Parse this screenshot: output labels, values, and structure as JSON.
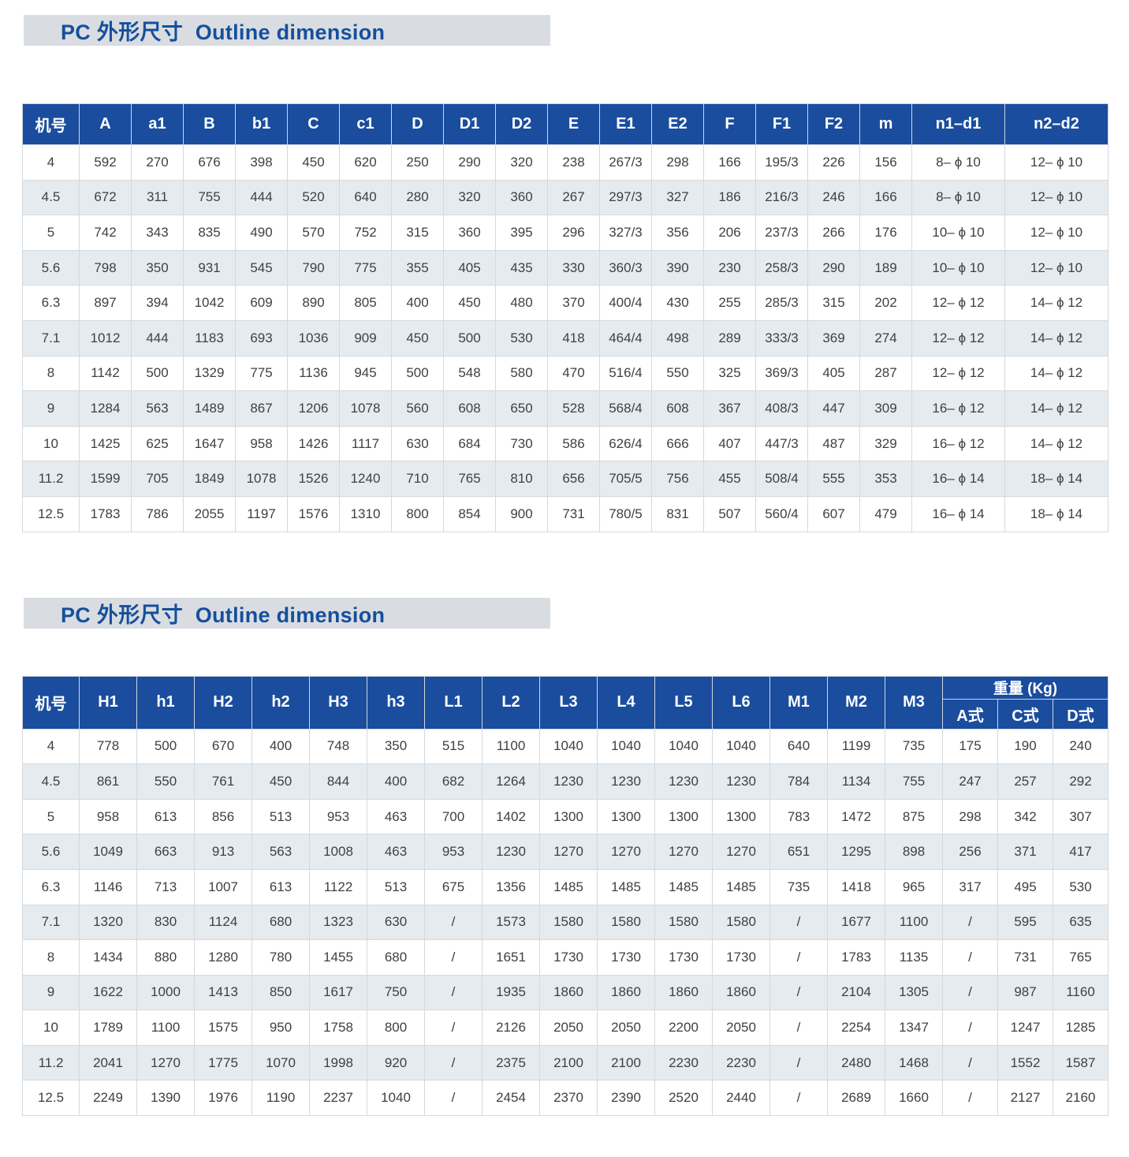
{
  "colors": {
    "header_blue": "#1a4d9e",
    "title_text_blue": "#154f9d",
    "title_bar_background": "#d9dde1",
    "row_alternate": "#e6ebef",
    "cell_text": "#3d4144",
    "grid_line": "#d4d9dd"
  },
  "section1": {
    "title": "PC 外形尺寸  Outline dimension",
    "table": {
      "columns": [
        "机号",
        "A",
        "a1",
        "B",
        "b1",
        "C",
        "c1",
        "D",
        "D1",
        "D2",
        "E",
        "E1",
        "E2",
        "F",
        "F1",
        "F2",
        "m",
        "n1–d1",
        "n2–d2"
      ],
      "rows": [
        [
          "4",
          "592",
          "270",
          "676",
          "398",
          "450",
          "620",
          "250",
          "290",
          "320",
          "238",
          "267/3",
          "298",
          "166",
          "195/3",
          "226",
          "156",
          "8– ϕ 10",
          "12– ϕ 10"
        ],
        [
          "4.5",
          "672",
          "311",
          "755",
          "444",
          "520",
          "640",
          "280",
          "320",
          "360",
          "267",
          "297/3",
          "327",
          "186",
          "216/3",
          "246",
          "166",
          "8– ϕ 10",
          "12– ϕ 10"
        ],
        [
          "5",
          "742",
          "343",
          "835",
          "490",
          "570",
          "752",
          "315",
          "360",
          "395",
          "296",
          "327/3",
          "356",
          "206",
          "237/3",
          "266",
          "176",
          "10– ϕ 10",
          "12– ϕ 10"
        ],
        [
          "5.6",
          "798",
          "350",
          "931",
          "545",
          "790",
          "775",
          "355",
          "405",
          "435",
          "330",
          "360/3",
          "390",
          "230",
          "258/3",
          "290",
          "189",
          "10– ϕ 10",
          "12– ϕ 10"
        ],
        [
          "6.3",
          "897",
          "394",
          "1042",
          "609",
          "890",
          "805",
          "400",
          "450",
          "480",
          "370",
          "400/4",
          "430",
          "255",
          "285/3",
          "315",
          "202",
          "12– ϕ 12",
          "14– ϕ 12"
        ],
        [
          "7.1",
          "1012",
          "444",
          "1183",
          "693",
          "1036",
          "909",
          "450",
          "500",
          "530",
          "418",
          "464/4",
          "498",
          "289",
          "333/3",
          "369",
          "274",
          "12– ϕ 12",
          "14– ϕ 12"
        ],
        [
          "8",
          "1142",
          "500",
          "1329",
          "775",
          "1136",
          "945",
          "500",
          "548",
          "580",
          "470",
          "516/4",
          "550",
          "325",
          "369/3",
          "405",
          "287",
          "12– ϕ 12",
          "14– ϕ 12"
        ],
        [
          "9",
          "1284",
          "563",
          "1489",
          "867",
          "1206",
          "1078",
          "560",
          "608",
          "650",
          "528",
          "568/4",
          "608",
          "367",
          "408/3",
          "447",
          "309",
          "16– ϕ 12",
          "14– ϕ 12"
        ],
        [
          "10",
          "1425",
          "625",
          "1647",
          "958",
          "1426",
          "1117",
          "630",
          "684",
          "730",
          "586",
          "626/4",
          "666",
          "407",
          "447/3",
          "487",
          "329",
          "16– ϕ 12",
          "14– ϕ 12"
        ],
        [
          "11.2",
          "1599",
          "705",
          "1849",
          "1078",
          "1526",
          "1240",
          "710",
          "765",
          "810",
          "656",
          "705/5",
          "756",
          "455",
          "508/4",
          "555",
          "353",
          "16– ϕ 14",
          "18– ϕ 14"
        ],
        [
          "12.5",
          "1783",
          "786",
          "2055",
          "1197",
          "1576",
          "1310",
          "800",
          "854",
          "900",
          "731",
          "780/5",
          "831",
          "507",
          "560/4",
          "607",
          "479",
          "16– ϕ 14",
          "18– ϕ 14"
        ]
      ]
    }
  },
  "section2": {
    "title": "PC 外形尺寸  Outline dimension",
    "table": {
      "columns_main": [
        "机号",
        "H1",
        "h1",
        "H2",
        "h2",
        "H3",
        "h3",
        "L1",
        "L2",
        "L3",
        "L4",
        "L5",
        "L6",
        "M1",
        "M2",
        "M3"
      ],
      "weight_group_label": "重量 (Kg)",
      "weight_sub_columns": [
        "A式",
        "C式",
        "D式"
      ],
      "rows": [
        [
          "4",
          "778",
          "500",
          "670",
          "400",
          "748",
          "350",
          "515",
          "1100",
          "1040",
          "1040",
          "1040",
          "1040",
          "640",
          "1199",
          "735",
          "175",
          "190",
          "240"
        ],
        [
          "4.5",
          "861",
          "550",
          "761",
          "450",
          "844",
          "400",
          "682",
          "1264",
          "1230",
          "1230",
          "1230",
          "1230",
          "784",
          "1134",
          "755",
          "247",
          "257",
          "292"
        ],
        [
          "5",
          "958",
          "613",
          "856",
          "513",
          "953",
          "463",
          "700",
          "1402",
          "1300",
          "1300",
          "1300",
          "1300",
          "783",
          "1472",
          "875",
          "298",
          "342",
          "307"
        ],
        [
          "5.6",
          "1049",
          "663",
          "913",
          "563",
          "1008",
          "463",
          "953",
          "1230",
          "1270",
          "1270",
          "1270",
          "1270",
          "651",
          "1295",
          "898",
          "256",
          "371",
          "417"
        ],
        [
          "6.3",
          "1146",
          "713",
          "1007",
          "613",
          "1122",
          "513",
          "675",
          "1356",
          "1485",
          "1485",
          "1485",
          "1485",
          "735",
          "1418",
          "965",
          "317",
          "495",
          "530"
        ],
        [
          "7.1",
          "1320",
          "830",
          "1124",
          "680",
          "1323",
          "630",
          "/",
          "1573",
          "1580",
          "1580",
          "1580",
          "1580",
          "/",
          "1677",
          "1100",
          "/",
          "595",
          "635"
        ],
        [
          "8",
          "1434",
          "880",
          "1280",
          "780",
          "1455",
          "680",
          "/",
          "1651",
          "1730",
          "1730",
          "1730",
          "1730",
          "/",
          "1783",
          "1135",
          "/",
          "731",
          "765"
        ],
        [
          "9",
          "1622",
          "1000",
          "1413",
          "850",
          "1617",
          "750",
          "/",
          "1935",
          "1860",
          "1860",
          "1860",
          "1860",
          "/",
          "2104",
          "1305",
          "/",
          "987",
          "1160"
        ],
        [
          "10",
          "1789",
          "1100",
          "1575",
          "950",
          "1758",
          "800",
          "/",
          "2126",
          "2050",
          "2050",
          "2200",
          "2050",
          "/",
          "2254",
          "1347",
          "/",
          "1247",
          "1285"
        ],
        [
          "11.2",
          "2041",
          "1270",
          "1775",
          "1070",
          "1998",
          "920",
          "/",
          "2375",
          "2100",
          "2100",
          "2230",
          "2230",
          "/",
          "2480",
          "1468",
          "/",
          "1552",
          "1587"
        ],
        [
          "12.5",
          "2249",
          "1390",
          "1976",
          "1190",
          "2237",
          "1040",
          "/",
          "2454",
          "2370",
          "2390",
          "2520",
          "2440",
          "/",
          "2689",
          "1660",
          "/",
          "2127",
          "2160"
        ]
      ]
    }
  }
}
